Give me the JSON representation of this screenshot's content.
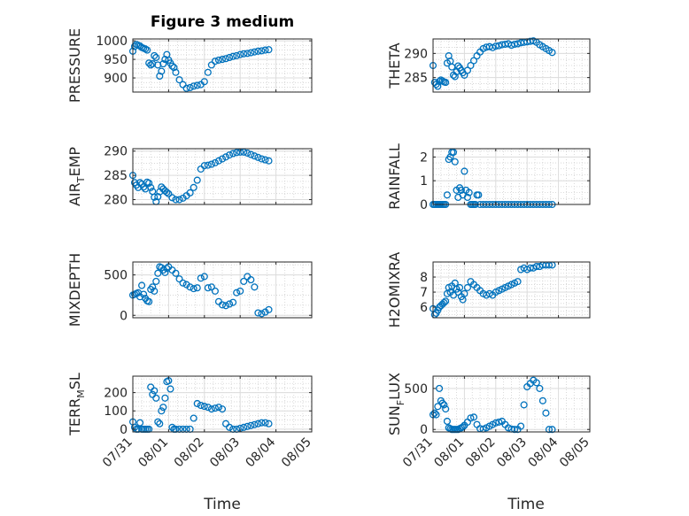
{
  "figure": {
    "title": "Figure 3 medium",
    "marker_color": "#0072BD"
  },
  "chart_data": [
    {
      "type": "scatter",
      "ylabel": "PRESSURE",
      "ylim": [
        862,
        1005
      ],
      "yticks": [
        900,
        950,
        1000
      ],
      "xlim": [
        0,
        5
      ],
      "x": [
        0,
        0.05,
        0.1,
        0.15,
        0.2,
        0.25,
        0.3,
        0.35,
        0.4,
        0.45,
        0.5,
        0.55,
        0.6,
        0.65,
        0.7,
        0.75,
        0.8,
        0.85,
        0.9,
        0.95,
        1.0,
        1.05,
        1.1,
        1.15,
        1.2,
        1.3,
        1.4,
        1.5,
        1.6,
        1.7,
        1.8,
        1.9,
        2.0,
        2.1,
        2.2,
        2.3,
        2.4,
        2.5,
        2.6,
        2.7,
        2.8,
        2.9,
        3.0,
        3.1,
        3.2,
        3.3,
        3.4,
        3.5,
        3.6,
        3.7,
        3.8
      ],
      "y": [
        972,
        985,
        990,
        988,
        986,
        982,
        980,
        978,
        975,
        940,
        935,
        938,
        960,
        955,
        935,
        905,
        918,
        938,
        950,
        963,
        948,
        940,
        932,
        928,
        915,
        895,
        882,
        872,
        874,
        878,
        880,
        882,
        890,
        915,
        935,
        945,
        948,
        950,
        952,
        955,
        958,
        960,
        963,
        965,
        966,
        968,
        970,
        972,
        973,
        975,
        976
      ]
    },
    {
      "type": "scatter",
      "ylabel": "THETA",
      "ylim": [
        282,
        293
      ],
      "yticks": [
        285,
        290
      ],
      "xlim": [
        0,
        5
      ],
      "x": [
        0,
        0.05,
        0.1,
        0.15,
        0.2,
        0.25,
        0.3,
        0.35,
        0.4,
        0.45,
        0.5,
        0.55,
        0.6,
        0.65,
        0.7,
        0.75,
        0.8,
        0.85,
        0.9,
        0.95,
        1.0,
        1.1,
        1.2,
        1.3,
        1.4,
        1.5,
        1.6,
        1.7,
        1.8,
        1.9,
        2.0,
        2.1,
        2.2,
        2.3,
        2.4,
        2.5,
        2.6,
        2.7,
        2.8,
        2.9,
        3.0,
        3.1,
        3.2,
        3.3,
        3.4,
        3.5,
        3.6,
        3.7,
        3.8
      ],
      "y": [
        287.5,
        284,
        283.6,
        283.2,
        284.2,
        284.5,
        284.3,
        284.1,
        284,
        288,
        289.5,
        288.4,
        287.2,
        285.5,
        285.2,
        286.2,
        287.4,
        287,
        286.5,
        286,
        285.5,
        286.5,
        287.5,
        288.5,
        289.5,
        290.3,
        291,
        291.3,
        291.4,
        291.2,
        291.5,
        291.6,
        291.8,
        291.9,
        292,
        291.7,
        291.9,
        292,
        292.2,
        292.3,
        292.4,
        292.5,
        292.6,
        292.3,
        291.8,
        291.4,
        291,
        290.6,
        290.2
      ]
    },
    {
      "type": "scatter",
      "ylabel": "AIR_TEMP",
      "ylabel_main": "AIR",
      "ylabel_sub": "T",
      "ylabel_rest": "EMP",
      "ylim": [
        279,
        290.5
      ],
      "yticks": [
        280,
        285,
        290
      ],
      "xlim": [
        0,
        5
      ],
      "x": [
        0,
        0.05,
        0.1,
        0.15,
        0.2,
        0.25,
        0.3,
        0.35,
        0.4,
        0.45,
        0.5,
        0.55,
        0.6,
        0.65,
        0.7,
        0.75,
        0.8,
        0.85,
        0.9,
        0.95,
        1.0,
        1.1,
        1.2,
        1.3,
        1.4,
        1.5,
        1.6,
        1.7,
        1.8,
        1.9,
        2.0,
        2.1,
        2.2,
        2.3,
        2.4,
        2.5,
        2.6,
        2.7,
        2.8,
        2.9,
        3.0,
        3.1,
        3.2,
        3.3,
        3.4,
        3.5,
        3.6,
        3.7,
        3.8
      ],
      "y": [
        285,
        283.5,
        283,
        282.5,
        283.5,
        283.2,
        282.6,
        282.2,
        283.6,
        283.4,
        282.5,
        281.7,
        280.5,
        279.6,
        280.6,
        281.6,
        282.6,
        282.2,
        281.8,
        281.5,
        281.2,
        280.4,
        280,
        280,
        280.3,
        280.8,
        281.4,
        282.5,
        284,
        286.3,
        287,
        287.1,
        287.3,
        287.6,
        288,
        288.4,
        288.8,
        289.2,
        289.5,
        289.7,
        289.8,
        289.8,
        289.6,
        289.3,
        289,
        288.7,
        288.4,
        288.2,
        288
      ]
    },
    {
      "type": "scatter",
      "ylabel": "RAINFALL",
      "ylim": [
        0,
        2.35
      ],
      "yticks": [
        0,
        1,
        2
      ],
      "xlim": [
        0,
        5
      ],
      "x": [
        0,
        0.05,
        0.1,
        0.15,
        0.2,
        0.25,
        0.3,
        0.35,
        0.4,
        0.45,
        0.5,
        0.55,
        0.6,
        0.65,
        0.7,
        0.75,
        0.8,
        0.85,
        0.9,
        0.95,
        1.0,
        1.05,
        1.1,
        1.15,
        1.2,
        1.25,
        1.3,
        1.35,
        1.4,
        1.45,
        1.5,
        1.6,
        1.7,
        1.8,
        1.9,
        2.0,
        2.1,
        2.2,
        2.3,
        2.4,
        2.5,
        2.6,
        2.7,
        2.8,
        2.9,
        3.0,
        3.1,
        3.2,
        3.3,
        3.4,
        3.5,
        3.6,
        3.7,
        3.8
      ],
      "y": [
        0,
        0,
        0,
        0,
        0,
        0,
        0,
        0,
        0,
        0.4,
        1.9,
        2.0,
        2.2,
        2.2,
        1.8,
        0.6,
        0.3,
        0.7,
        0.6,
        0.4,
        1.4,
        0.6,
        0.3,
        0.5,
        0,
        0,
        0,
        0,
        0.4,
        0.4,
        0,
        0,
        0,
        0,
        0,
        0,
        0,
        0,
        0,
        0,
        0,
        0,
        0,
        0,
        0,
        0,
        0,
        0,
        0,
        0,
        0,
        0,
        0,
        0
      ]
    },
    {
      "type": "scatter",
      "ylabel": "MIXDEPTH",
      "ylim": [
        -30,
        660
      ],
      "yticks": [
        0,
        500
      ],
      "xlim": [
        0,
        5
      ],
      "x": [
        0,
        0.05,
        0.1,
        0.15,
        0.2,
        0.25,
        0.3,
        0.35,
        0.4,
        0.45,
        0.5,
        0.55,
        0.6,
        0.65,
        0.7,
        0.75,
        0.8,
        0.85,
        0.9,
        0.95,
        1.0,
        1.1,
        1.2,
        1.3,
        1.4,
        1.5,
        1.6,
        1.7,
        1.8,
        1.9,
        2.0,
        2.1,
        2.2,
        2.3,
        2.4,
        2.5,
        2.6,
        2.7,
        2.8,
        2.9,
        3.0,
        3.1,
        3.2,
        3.3,
        3.4,
        3.5,
        3.6,
        3.7,
        3.8
      ],
      "y": [
        250,
        260,
        270,
        280,
        230,
        370,
        260,
        210,
        180,
        170,
        320,
        350,
        300,
        420,
        520,
        600,
        590,
        560,
        530,
        580,
        600,
        560,
        520,
        450,
        400,
        380,
        350,
        330,
        340,
        460,
        480,
        340,
        350,
        300,
        170,
        130,
        120,
        140,
        160,
        280,
        300,
        420,
        480,
        440,
        350,
        30,
        20,
        40,
        70
      ]
    },
    {
      "type": "scatter",
      "ylabel": "H2OMIXRA",
      "ylim": [
        5.3,
        9.0
      ],
      "yticks": [
        6,
        7,
        8
      ],
      "xlim": [
        0,
        5
      ],
      "x": [
        0,
        0.05,
        0.1,
        0.15,
        0.2,
        0.25,
        0.3,
        0.35,
        0.4,
        0.45,
        0.5,
        0.55,
        0.6,
        0.65,
        0.7,
        0.75,
        0.8,
        0.85,
        0.9,
        0.95,
        1.0,
        1.1,
        1.2,
        1.3,
        1.4,
        1.5,
        1.6,
        1.7,
        1.8,
        1.9,
        2.0,
        2.1,
        2.2,
        2.3,
        2.4,
        2.5,
        2.6,
        2.7,
        2.8,
        2.9,
        3.0,
        3.1,
        3.2,
        3.3,
        3.4,
        3.5,
        3.6,
        3.7,
        3.8
      ],
      "y": [
        5.9,
        5.5,
        5.6,
        5.8,
        6.0,
        6.1,
        6.2,
        6.3,
        6.4,
        6.9,
        7.3,
        7.0,
        7.4,
        6.8,
        7.6,
        7.2,
        7.0,
        7.3,
        6.7,
        6.5,
        6.9,
        7.3,
        7.7,
        7.5,
        7.3,
        7.1,
        6.9,
        6.8,
        6.9,
        6.8,
        7.0,
        7.1,
        7.2,
        7.3,
        7.4,
        7.5,
        7.6,
        7.7,
        8.5,
        8.6,
        8.5,
        8.6,
        8.6,
        8.7,
        8.7,
        8.8,
        8.8,
        8.8,
        8.8
      ]
    },
    {
      "type": "scatter",
      "ylabel": "TERR_MSL",
      "ylabel_main": "TERR",
      "ylabel_sub": "M",
      "ylabel_rest": "SL",
      "ylim": [
        -15,
        290
      ],
      "yticks": [
        0,
        100,
        200
      ],
      "xlim": [
        0,
        5
      ],
      "x": [
        0,
        0.05,
        0.1,
        0.15,
        0.2,
        0.25,
        0.3,
        0.35,
        0.4,
        0.45,
        0.5,
        0.55,
        0.6,
        0.65,
        0.7,
        0.75,
        0.8,
        0.85,
        0.9,
        0.95,
        1.0,
        1.05,
        1.1,
        1.15,
        1.2,
        1.3,
        1.4,
        1.5,
        1.6,
        1.7,
        1.8,
        1.9,
        2.0,
        2.1,
        2.2,
        2.3,
        2.4,
        2.5,
        2.6,
        2.7,
        2.8,
        2.9,
        3.0,
        3.1,
        3.2,
        3.3,
        3.4,
        3.5,
        3.6,
        3.7,
        3.8
      ],
      "y": [
        40,
        10,
        0,
        0,
        35,
        0,
        0,
        0,
        0,
        0,
        230,
        190,
        210,
        170,
        40,
        30,
        100,
        120,
        170,
        260,
        265,
        220,
        10,
        0,
        0,
        0,
        0,
        0,
        0,
        60,
        140,
        130,
        125,
        120,
        110,
        115,
        120,
        110,
        30,
        10,
        0,
        0,
        5,
        10,
        15,
        20,
        25,
        30,
        35,
        35,
        30
      ]
    },
    {
      "type": "scatter",
      "ylabel": "SUN_FLUX",
      "ylabel_main": "SUN",
      "ylabel_sub": "F",
      "ylabel_rest": "LUX",
      "ylim": [
        -30,
        650
      ],
      "yticks": [
        0,
        500
      ],
      "xlim": [
        0,
        5
      ],
      "x": [
        0,
        0.05,
        0.1,
        0.15,
        0.2,
        0.25,
        0.3,
        0.35,
        0.4,
        0.45,
        0.5,
        0.55,
        0.6,
        0.65,
        0.7,
        0.75,
        0.8,
        0.85,
        0.9,
        0.95,
        1.0,
        1.1,
        1.2,
        1.3,
        1.4,
        1.5,
        1.6,
        1.7,
        1.8,
        1.9,
        2.0,
        2.1,
        2.2,
        2.3,
        2.4,
        2.5,
        2.6,
        2.7,
        2.8,
        2.9,
        3.0,
        3.1,
        3.2,
        3.3,
        3.4,
        3.5,
        3.6,
        3.7,
        3.8
      ],
      "y": [
        180,
        200,
        180,
        280,
        500,
        350,
        320,
        300,
        250,
        100,
        20,
        10,
        0,
        0,
        0,
        0,
        0,
        10,
        20,
        30,
        50,
        90,
        140,
        150,
        60,
        10,
        5,
        20,
        40,
        60,
        80,
        90,
        100,
        60,
        20,
        5,
        0,
        0,
        40,
        300,
        520,
        560,
        600,
        570,
        500,
        350,
        200,
        0,
        0
      ]
    }
  ],
  "xaxis": {
    "ticklabels": [
      "07/31",
      "08/01",
      "08/02",
      "08/03",
      "08/04",
      "08/05"
    ],
    "label": "Time"
  }
}
